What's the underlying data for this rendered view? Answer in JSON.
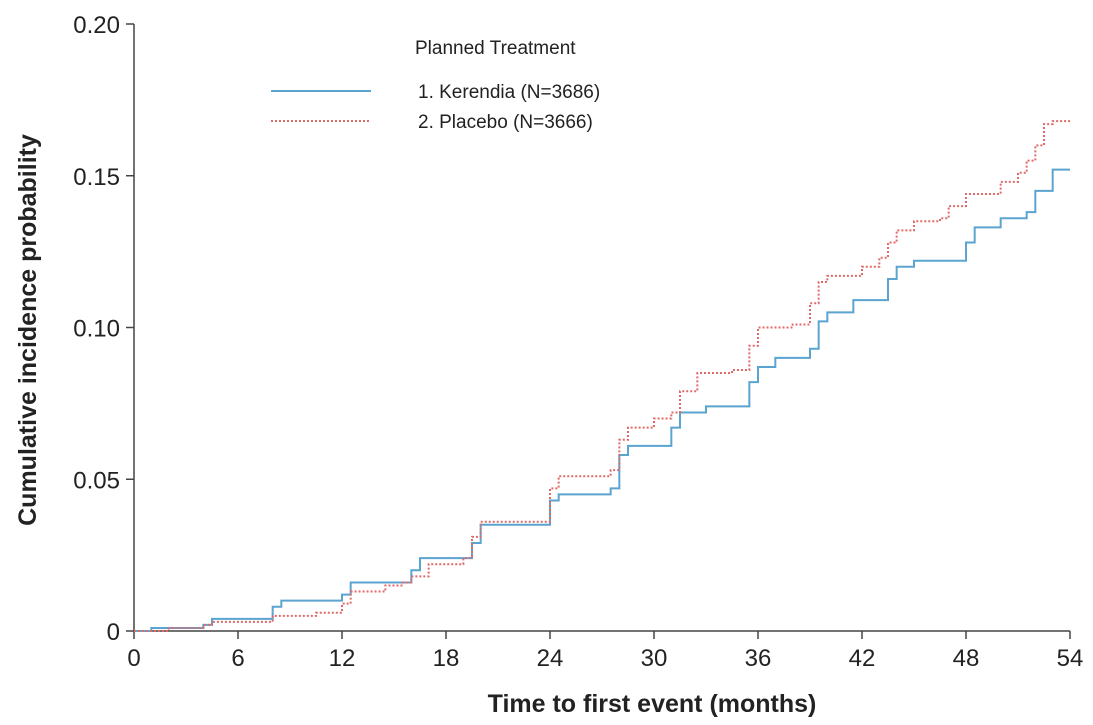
{
  "chart_data": {
    "type": "line",
    "xlabel": "Time to first event (months)",
    "ylabel": "Cumulative incidence probability",
    "xlim": [
      0,
      54
    ],
    "ylim": [
      0,
      0.2
    ],
    "x_ticks": [
      "0",
      "6",
      "12",
      "18",
      "24",
      "30",
      "36",
      "42",
      "48",
      "54"
    ],
    "y_ticks": [
      "0",
      "0.05",
      "0.10",
      "0.15",
      "0.20"
    ],
    "grid": false,
    "legend_title": "Planned Treatment",
    "legend_position": "top-center",
    "series": [
      {
        "name": "1. Kerendia (N=3686)",
        "color": "#5ba4d0",
        "style": "solid",
        "points": [
          [
            0,
            0
          ],
          [
            1,
            0.001
          ],
          [
            2,
            0.001
          ],
          [
            4,
            0.002
          ],
          [
            4.5,
            0.004
          ],
          [
            7.5,
            0.004
          ],
          [
            8,
            0.008
          ],
          [
            8.5,
            0.01
          ],
          [
            11,
            0.01
          ],
          [
            12,
            0.012
          ],
          [
            12.5,
            0.016
          ],
          [
            15.5,
            0.016
          ],
          [
            16,
            0.02
          ],
          [
            16.5,
            0.024
          ],
          [
            19,
            0.024
          ],
          [
            19.5,
            0.029
          ],
          [
            20,
            0.035
          ],
          [
            23.5,
            0.035
          ],
          [
            24,
            0.043
          ],
          [
            24.5,
            0.045
          ],
          [
            26.5,
            0.045
          ],
          [
            27.5,
            0.047
          ],
          [
            28,
            0.058
          ],
          [
            28.5,
            0.061
          ],
          [
            30,
            0.061
          ],
          [
            31,
            0.067
          ],
          [
            31.5,
            0.072
          ],
          [
            33,
            0.074
          ],
          [
            35,
            0.074
          ],
          [
            35.5,
            0.082
          ],
          [
            36,
            0.087
          ],
          [
            37,
            0.09
          ],
          [
            38.5,
            0.09
          ],
          [
            39,
            0.093
          ],
          [
            39.5,
            0.102
          ],
          [
            40,
            0.105
          ],
          [
            41.5,
            0.109
          ],
          [
            43,
            0.109
          ],
          [
            43.5,
            0.116
          ],
          [
            44,
            0.12
          ],
          [
            45,
            0.122
          ],
          [
            47.5,
            0.122
          ],
          [
            48,
            0.128
          ],
          [
            48.5,
            0.133
          ],
          [
            50,
            0.136
          ],
          [
            51.5,
            0.138
          ],
          [
            52,
            0.145
          ],
          [
            53,
            0.152
          ],
          [
            54,
            0.152
          ]
        ]
      },
      {
        "name": "2. Placebo (N=3666)",
        "color": "#e06a6a",
        "style": "dotted",
        "points": [
          [
            0,
            0
          ],
          [
            2,
            0.001
          ],
          [
            4,
            0.002
          ],
          [
            4.5,
            0.003
          ],
          [
            7.5,
            0.003
          ],
          [
            8,
            0.005
          ],
          [
            10.5,
            0.006
          ],
          [
            12,
            0.009
          ],
          [
            12.5,
            0.013
          ],
          [
            14.5,
            0.015
          ],
          [
            15.5,
            0.016
          ],
          [
            16,
            0.018
          ],
          [
            17,
            0.022
          ],
          [
            19,
            0.024
          ],
          [
            19.5,
            0.031
          ],
          [
            20,
            0.036
          ],
          [
            23.5,
            0.036
          ],
          [
            24,
            0.047
          ],
          [
            24.5,
            0.051
          ],
          [
            27.5,
            0.053
          ],
          [
            28,
            0.063
          ],
          [
            28.5,
            0.067
          ],
          [
            30,
            0.07
          ],
          [
            31,
            0.072
          ],
          [
            31.5,
            0.079
          ],
          [
            32.5,
            0.085
          ],
          [
            34.5,
            0.086
          ],
          [
            35.5,
            0.094
          ],
          [
            36,
            0.1
          ],
          [
            38,
            0.101
          ],
          [
            39,
            0.108
          ],
          [
            39.5,
            0.115
          ],
          [
            40,
            0.117
          ],
          [
            42,
            0.12
          ],
          [
            43,
            0.123
          ],
          [
            43.5,
            0.128
          ],
          [
            44,
            0.132
          ],
          [
            45,
            0.135
          ],
          [
            46.5,
            0.136
          ],
          [
            47,
            0.14
          ],
          [
            48,
            0.144
          ],
          [
            50,
            0.148
          ],
          [
            51,
            0.151
          ],
          [
            51.5,
            0.155
          ],
          [
            52,
            0.16
          ],
          [
            52.5,
            0.167
          ],
          [
            53,
            0.168
          ],
          [
            54,
            0.168
          ]
        ]
      }
    ]
  }
}
